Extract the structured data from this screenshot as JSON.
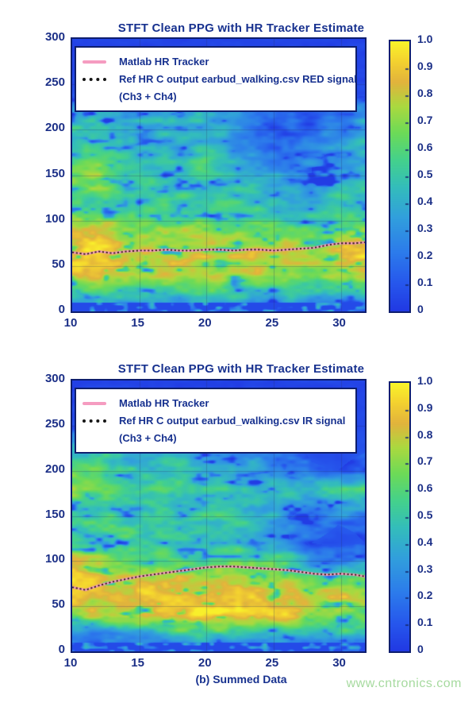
{
  "page": {
    "background": "#ffffff",
    "text_color": "#17318f",
    "border_color": "#0e1e6e"
  },
  "caption": "(b) Summed Data",
  "watermark": "www.cntronics.com",
  "colormap": {
    "stops": [
      [
        0.0,
        "#2139e3"
      ],
      [
        0.1,
        "#2656ec"
      ],
      [
        0.22,
        "#2c7ceb"
      ],
      [
        0.35,
        "#31a0dc"
      ],
      [
        0.46,
        "#33bdbb"
      ],
      [
        0.56,
        "#44d18c"
      ],
      [
        0.66,
        "#6cda58"
      ],
      [
        0.76,
        "#abd93f"
      ],
      [
        0.85,
        "#e2b33c"
      ],
      [
        0.93,
        "#f4d32f"
      ],
      [
        1.0,
        "#f9f42a"
      ]
    ]
  },
  "chart_data": [
    {
      "type": "heatmap",
      "title": "STFT Clean PPG with HR Tracker Estimate",
      "xlabel": "",
      "ylabel": "",
      "x": {
        "min": 10,
        "max": 31.8,
        "ticks": [
          10,
          15,
          20,
          25,
          30
        ]
      },
      "y": {
        "min": 0,
        "max": 300,
        "ticks": [
          0,
          50,
          100,
          150,
          200,
          250,
          300
        ]
      },
      "colorbar": {
        "min": 0,
        "max": 1,
        "ticks": [
          "1.0",
          "0.9",
          "0.8",
          "0.7",
          "0.6",
          "0.5",
          "0.4",
          "0.3",
          "0.2",
          "0.1",
          "0"
        ]
      },
      "legend": {
        "position": "upper-left",
        "entries": [
          {
            "label": "Matlab HR Tracker",
            "style": "solid",
            "color": "#f59cc0"
          },
          {
            "label": "Ref HR C output earbud_walking.csv RED signal",
            "label2": "(Ch3 + Ch4)",
            "style": "dotted",
            "color": "#161616"
          }
        ]
      },
      "tracker": {
        "x": [
          10,
          11,
          12,
          13,
          14,
          15,
          16,
          17,
          18,
          19,
          20,
          21,
          22,
          23,
          24,
          25,
          26,
          27,
          28,
          29,
          30,
          31,
          31.8
        ],
        "hr": [
          65,
          63,
          66,
          64,
          66,
          67,
          67,
          68,
          67,
          67,
          68,
          68,
          67,
          68,
          68,
          67,
          68,
          69,
          70,
          73,
          75,
          75,
          76
        ]
      },
      "intensity": [
        [
          0.04,
          0.04,
          0.04,
          0.04,
          0.04,
          0.04,
          0.04,
          0.04,
          0.04,
          0.04,
          0.04,
          0.04
        ],
        [
          0.04,
          0.04,
          0.04,
          0.04,
          0.04,
          0.04,
          0.04,
          0.04,
          0.04,
          0.04,
          0.04,
          0.04
        ],
        [
          0.05,
          0.05,
          0.05,
          0.05,
          0.05,
          0.05,
          0.05,
          0.05,
          0.05,
          0.05,
          0.05,
          0.05
        ],
        [
          0.08,
          0.1,
          0.09,
          0.08,
          0.09,
          0.1,
          0.08,
          0.07,
          0.06,
          0.06,
          0.06,
          0.07
        ],
        [
          0.38,
          0.45,
          0.32,
          0.36,
          0.42,
          0.36,
          0.3,
          0.2,
          0.12,
          0.12,
          0.18,
          0.3
        ],
        [
          0.45,
          0.5,
          0.42,
          0.38,
          0.45,
          0.4,
          0.35,
          0.16,
          0.1,
          0.14,
          0.22,
          0.35
        ],
        [
          0.52,
          0.56,
          0.46,
          0.4,
          0.36,
          0.46,
          0.32,
          0.14,
          0.16,
          0.26,
          0.3,
          0.4
        ],
        [
          0.68,
          0.72,
          0.52,
          0.46,
          0.5,
          0.55,
          0.42,
          0.3,
          0.26,
          0.3,
          0.36,
          0.32
        ],
        [
          0.6,
          0.68,
          0.55,
          0.5,
          0.46,
          0.5,
          0.46,
          0.4,
          0.36,
          0.3,
          0.45,
          0.5
        ],
        [
          0.5,
          0.55,
          0.5,
          0.55,
          0.5,
          0.46,
          0.5,
          0.46,
          0.4,
          0.36,
          0.5,
          0.46
        ],
        [
          0.72,
          0.7,
          0.62,
          0.6,
          0.62,
          0.58,
          0.6,
          0.55,
          0.5,
          0.46,
          0.55,
          0.62
        ],
        [
          0.82,
          0.86,
          0.76,
          0.72,
          0.74,
          0.76,
          0.72,
          0.74,
          0.7,
          0.6,
          0.78,
          0.88
        ],
        [
          0.93,
          0.95,
          0.85,
          0.8,
          0.82,
          0.8,
          0.78,
          0.8,
          0.82,
          0.7,
          0.85,
          0.93
        ],
        [
          0.85,
          0.9,
          0.8,
          0.75,
          0.78,
          0.75,
          0.72,
          0.75,
          0.7,
          0.62,
          0.78,
          0.75
        ],
        [
          0.55,
          0.6,
          0.5,
          0.55,
          0.5,
          0.55,
          0.5,
          0.46,
          0.5,
          0.4,
          0.5,
          0.55
        ],
        [
          0.15,
          0.2,
          0.15,
          0.18,
          0.15,
          0.2,
          0.15,
          0.18,
          0.15,
          0.12,
          0.18,
          0.15
        ]
      ],
      "noise": {
        "seed": 11,
        "amp": 0.16
      }
    },
    {
      "type": "heatmap",
      "title": "STFT Clean PPG with HR Tracker Estimate",
      "xlabel": "",
      "ylabel": "",
      "x": {
        "min": 10,
        "max": 31.8,
        "ticks": [
          10,
          15,
          20,
          25,
          30
        ]
      },
      "y": {
        "min": 0,
        "max": 300,
        "ticks": [
          0,
          50,
          100,
          150,
          200,
          250,
          300
        ]
      },
      "colorbar": {
        "min": 0,
        "max": 1,
        "ticks": [
          "1.0",
          "0.9",
          "0.8",
          "0.7",
          "0.6",
          "0.5",
          "0.4",
          "0.3",
          "0.2",
          "0.1",
          "0"
        ]
      },
      "legend": {
        "position": "upper-left",
        "entries": [
          {
            "label": "Matlab HR Tracker",
            "style": "solid",
            "color": "#f59cc0"
          },
          {
            "label": "Ref HR C output earbud_walking.csv IR signal",
            "label2": "(Ch3 + Ch4)",
            "style": "dotted",
            "color": "#161616"
          }
        ]
      },
      "tracker": {
        "x": [
          10,
          11,
          12,
          13,
          14,
          15,
          16,
          17,
          18,
          19,
          20,
          21,
          22,
          23,
          24,
          25,
          26,
          27,
          28,
          29,
          30,
          31,
          31.8
        ],
        "hr": [
          71,
          68,
          73,
          77,
          80,
          83,
          85,
          87,
          89,
          91,
          93,
          94,
          94,
          93,
          92,
          91,
          90,
          88,
          86,
          85,
          86,
          85,
          83
        ]
      },
      "intensity": [
        [
          0.04,
          0.04,
          0.04,
          0.04,
          0.04,
          0.04,
          0.04,
          0.04,
          0.04,
          0.04,
          0.04,
          0.04
        ],
        [
          0.04,
          0.04,
          0.04,
          0.04,
          0.04,
          0.04,
          0.04,
          0.04,
          0.04,
          0.04,
          0.04,
          0.04
        ],
        [
          0.05,
          0.05,
          0.05,
          0.05,
          0.05,
          0.05,
          0.05,
          0.05,
          0.05,
          0.05,
          0.05,
          0.05
        ],
        [
          0.16,
          0.2,
          0.18,
          0.15,
          0.2,
          0.18,
          0.15,
          0.12,
          0.1,
          0.08,
          0.06,
          0.08
        ],
        [
          0.4,
          0.45,
          0.35,
          0.3,
          0.4,
          0.35,
          0.3,
          0.25,
          0.16,
          0.08,
          0.06,
          0.1
        ],
        [
          0.55,
          0.6,
          0.5,
          0.45,
          0.5,
          0.45,
          0.4,
          0.35,
          0.3,
          0.12,
          0.1,
          0.16
        ],
        [
          0.72,
          0.6,
          0.5,
          0.55,
          0.5,
          0.55,
          0.5,
          0.45,
          0.5,
          0.45,
          0.55,
          0.5
        ],
        [
          0.55,
          0.5,
          0.45,
          0.5,
          0.45,
          0.5,
          0.45,
          0.4,
          0.36,
          0.3,
          0.35,
          0.3
        ],
        [
          0.5,
          0.55,
          0.5,
          0.45,
          0.5,
          0.45,
          0.5,
          0.4,
          0.3,
          0.15,
          0.1,
          0.12
        ],
        [
          0.55,
          0.5,
          0.55,
          0.5,
          0.45,
          0.5,
          0.45,
          0.42,
          0.35,
          0.1,
          0.06,
          0.1
        ],
        [
          0.8,
          0.75,
          0.6,
          0.55,
          0.6,
          0.55,
          0.6,
          0.55,
          0.5,
          0.3,
          0.22,
          0.28
        ],
        [
          0.95,
          0.9,
          0.8,
          0.75,
          0.78,
          0.8,
          0.78,
          0.75,
          0.72,
          0.6,
          0.66,
          0.6
        ],
        [
          0.85,
          0.8,
          0.85,
          0.9,
          0.92,
          0.9,
          0.92,
          0.9,
          0.85,
          0.8,
          0.85,
          0.75
        ],
        [
          0.7,
          0.75,
          0.85,
          0.9,
          0.92,
          0.95,
          0.9,
          0.92,
          0.85,
          0.75,
          0.7,
          0.6
        ],
        [
          0.3,
          0.25,
          0.3,
          0.35,
          0.5,
          0.55,
          0.5,
          0.45,
          0.5,
          0.45,
          0.5,
          0.45
        ],
        [
          0.1,
          0.12,
          0.1,
          0.1,
          0.12,
          0.1,
          0.12,
          0.1,
          0.08,
          0.1,
          0.12,
          0.08
        ]
      ],
      "noise": {
        "seed": 29,
        "amp": 0.16
      }
    }
  ]
}
